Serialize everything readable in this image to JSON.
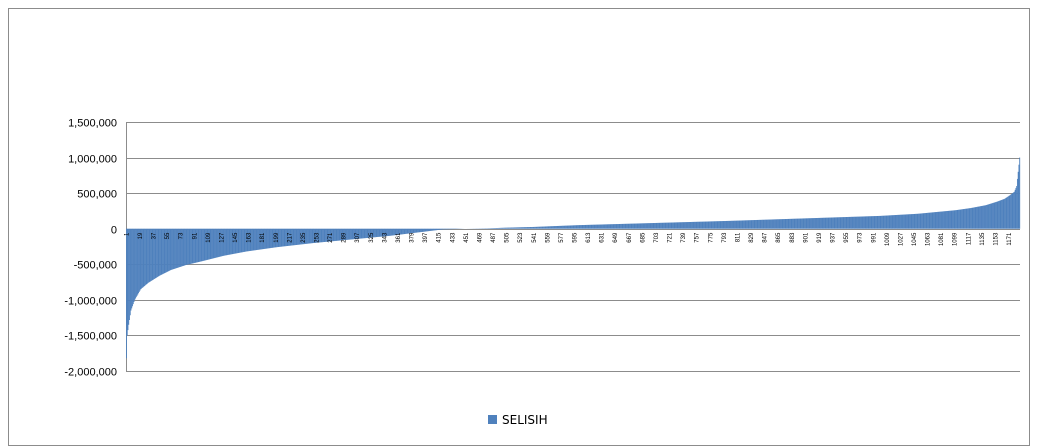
{
  "chart_data": {
    "type": "bar",
    "title": "",
    "xlabel": "",
    "ylabel": "",
    "ylim": [
      -2000000,
      1500000
    ],
    "y_ticks": [
      1500000,
      1000000,
      500000,
      0,
      -500000,
      -1000000,
      -1500000,
      -2000000
    ],
    "y_tick_labels": [
      "1,500,000",
      "1,000,000",
      "500,000",
      "0",
      "-500,000",
      "-1,000,000",
      "-1,500,000",
      "-2,000,000"
    ],
    "grid": true,
    "x_count": 1185,
    "x_ticks": [
      1,
      19,
      37,
      55,
      73,
      91,
      109,
      127,
      145,
      163,
      181,
      199,
      217,
      235,
      253,
      271,
      289,
      307,
      325,
      343,
      361,
      379,
      397,
      415,
      433,
      451,
      469,
      487,
      505,
      523,
      541,
      559,
      577,
      595,
      613,
      631,
      649,
      667,
      685,
      703,
      721,
      739,
      757,
      775,
      793,
      811,
      829,
      847,
      865,
      883,
      901,
      919,
      937,
      955,
      973,
      991,
      1009,
      1027,
      1045,
      1063,
      1081,
      1099,
      1117,
      1135,
      1153,
      1171
    ],
    "x_tick_labels": [
      "1",
      "19",
      "37",
      "55",
      "73",
      "91",
      "109",
      "127",
      "145",
      "163",
      "181",
      "199",
      "217",
      "235",
      "253",
      "271",
      "289",
      "307",
      "325",
      "343",
      "361",
      "379",
      "397",
      "415",
      "433",
      "451",
      "469",
      "487",
      "505",
      "523",
      "541",
      "559",
      "577",
      "595",
      "613",
      "631",
      "649",
      "667",
      "685",
      "703",
      "721",
      "739",
      "757",
      "775",
      "793",
      "811",
      "829",
      "847",
      "865",
      "883",
      "901",
      "919",
      "937",
      "955",
      "973",
      "991",
      "1009",
      "1027",
      "1045",
      "1063",
      "1081",
      "1099",
      "1117",
      "1135",
      "1153",
      "1171"
    ],
    "value_profile": {
      "x": [
        1,
        2,
        4,
        7,
        12,
        20,
        30,
        45,
        60,
        80,
        100,
        130,
        160,
        200,
        250,
        300,
        350,
        397,
        420,
        450,
        480,
        505,
        541,
        600,
        700,
        800,
        900,
        1000,
        1050,
        1100,
        1120,
        1140,
        1155,
        1165,
        1172,
        1178,
        1181,
        1183,
        1185
      ],
      "y": [
        -1820000,
        -1500000,
        -1350000,
        -1150000,
        -1000000,
        -850000,
        -760000,
        -660000,
        -580000,
        -510000,
        -460000,
        -380000,
        -320000,
        -260000,
        -200000,
        -150000,
        -100000,
        -40000,
        -10000,
        0,
        5000,
        15000,
        25000,
        50000,
        80000,
        110000,
        145000,
        180000,
        210000,
        260000,
        290000,
        330000,
        380000,
        420000,
        470000,
        520000,
        600000,
        800000,
        1000000
      ]
    },
    "legend": {
      "position": "bottom",
      "entries": [
        {
          "label": "SELISIH",
          "color": "#4f81bd"
        }
      ]
    },
    "series": [
      {
        "name": "SELISIH",
        "color": "#4f81bd"
      }
    ]
  }
}
